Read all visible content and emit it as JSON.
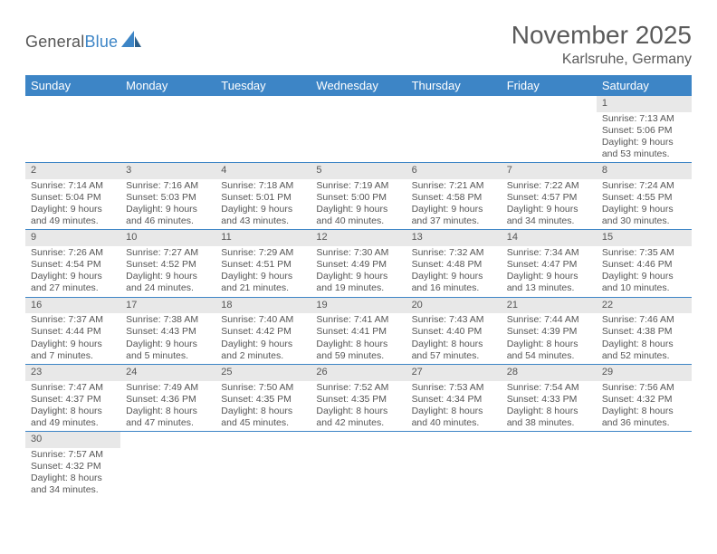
{
  "logo": {
    "text_general": "General",
    "text_blue": "Blue"
  },
  "title": "November 2025",
  "location": "Karlsruhe, Germany",
  "colors": {
    "header_bg": "#3d85c6",
    "header_text": "#ffffff",
    "daynum_bg": "#e8e8e8",
    "cell_border": "#3d85c6",
    "text": "#555555",
    "background": "#ffffff"
  },
  "day_headers": [
    "Sunday",
    "Monday",
    "Tuesday",
    "Wednesday",
    "Thursday",
    "Friday",
    "Saturday"
  ],
  "weeks": [
    [
      {
        "empty": true
      },
      {
        "empty": true
      },
      {
        "empty": true
      },
      {
        "empty": true
      },
      {
        "empty": true
      },
      {
        "empty": true
      },
      {
        "num": "1",
        "sunrise": "Sunrise: 7:13 AM",
        "sunset": "Sunset: 5:06 PM",
        "daylight1": "Daylight: 9 hours",
        "daylight2": "and 53 minutes."
      }
    ],
    [
      {
        "num": "2",
        "sunrise": "Sunrise: 7:14 AM",
        "sunset": "Sunset: 5:04 PM",
        "daylight1": "Daylight: 9 hours",
        "daylight2": "and 49 minutes."
      },
      {
        "num": "3",
        "sunrise": "Sunrise: 7:16 AM",
        "sunset": "Sunset: 5:03 PM",
        "daylight1": "Daylight: 9 hours",
        "daylight2": "and 46 minutes."
      },
      {
        "num": "4",
        "sunrise": "Sunrise: 7:18 AM",
        "sunset": "Sunset: 5:01 PM",
        "daylight1": "Daylight: 9 hours",
        "daylight2": "and 43 minutes."
      },
      {
        "num": "5",
        "sunrise": "Sunrise: 7:19 AM",
        "sunset": "Sunset: 5:00 PM",
        "daylight1": "Daylight: 9 hours",
        "daylight2": "and 40 minutes."
      },
      {
        "num": "6",
        "sunrise": "Sunrise: 7:21 AM",
        "sunset": "Sunset: 4:58 PM",
        "daylight1": "Daylight: 9 hours",
        "daylight2": "and 37 minutes."
      },
      {
        "num": "7",
        "sunrise": "Sunrise: 7:22 AM",
        "sunset": "Sunset: 4:57 PM",
        "daylight1": "Daylight: 9 hours",
        "daylight2": "and 34 minutes."
      },
      {
        "num": "8",
        "sunrise": "Sunrise: 7:24 AM",
        "sunset": "Sunset: 4:55 PM",
        "daylight1": "Daylight: 9 hours",
        "daylight2": "and 30 minutes."
      }
    ],
    [
      {
        "num": "9",
        "sunrise": "Sunrise: 7:26 AM",
        "sunset": "Sunset: 4:54 PM",
        "daylight1": "Daylight: 9 hours",
        "daylight2": "and 27 minutes."
      },
      {
        "num": "10",
        "sunrise": "Sunrise: 7:27 AM",
        "sunset": "Sunset: 4:52 PM",
        "daylight1": "Daylight: 9 hours",
        "daylight2": "and 24 minutes."
      },
      {
        "num": "11",
        "sunrise": "Sunrise: 7:29 AM",
        "sunset": "Sunset: 4:51 PM",
        "daylight1": "Daylight: 9 hours",
        "daylight2": "and 21 minutes."
      },
      {
        "num": "12",
        "sunrise": "Sunrise: 7:30 AM",
        "sunset": "Sunset: 4:49 PM",
        "daylight1": "Daylight: 9 hours",
        "daylight2": "and 19 minutes."
      },
      {
        "num": "13",
        "sunrise": "Sunrise: 7:32 AM",
        "sunset": "Sunset: 4:48 PM",
        "daylight1": "Daylight: 9 hours",
        "daylight2": "and 16 minutes."
      },
      {
        "num": "14",
        "sunrise": "Sunrise: 7:34 AM",
        "sunset": "Sunset: 4:47 PM",
        "daylight1": "Daylight: 9 hours",
        "daylight2": "and 13 minutes."
      },
      {
        "num": "15",
        "sunrise": "Sunrise: 7:35 AM",
        "sunset": "Sunset: 4:46 PM",
        "daylight1": "Daylight: 9 hours",
        "daylight2": "and 10 minutes."
      }
    ],
    [
      {
        "num": "16",
        "sunrise": "Sunrise: 7:37 AM",
        "sunset": "Sunset: 4:44 PM",
        "daylight1": "Daylight: 9 hours",
        "daylight2": "and 7 minutes."
      },
      {
        "num": "17",
        "sunrise": "Sunrise: 7:38 AM",
        "sunset": "Sunset: 4:43 PM",
        "daylight1": "Daylight: 9 hours",
        "daylight2": "and 5 minutes."
      },
      {
        "num": "18",
        "sunrise": "Sunrise: 7:40 AM",
        "sunset": "Sunset: 4:42 PM",
        "daylight1": "Daylight: 9 hours",
        "daylight2": "and 2 minutes."
      },
      {
        "num": "19",
        "sunrise": "Sunrise: 7:41 AM",
        "sunset": "Sunset: 4:41 PM",
        "daylight1": "Daylight: 8 hours",
        "daylight2": "and 59 minutes."
      },
      {
        "num": "20",
        "sunrise": "Sunrise: 7:43 AM",
        "sunset": "Sunset: 4:40 PM",
        "daylight1": "Daylight: 8 hours",
        "daylight2": "and 57 minutes."
      },
      {
        "num": "21",
        "sunrise": "Sunrise: 7:44 AM",
        "sunset": "Sunset: 4:39 PM",
        "daylight1": "Daylight: 8 hours",
        "daylight2": "and 54 minutes."
      },
      {
        "num": "22",
        "sunrise": "Sunrise: 7:46 AM",
        "sunset": "Sunset: 4:38 PM",
        "daylight1": "Daylight: 8 hours",
        "daylight2": "and 52 minutes."
      }
    ],
    [
      {
        "num": "23",
        "sunrise": "Sunrise: 7:47 AM",
        "sunset": "Sunset: 4:37 PM",
        "daylight1": "Daylight: 8 hours",
        "daylight2": "and 49 minutes."
      },
      {
        "num": "24",
        "sunrise": "Sunrise: 7:49 AM",
        "sunset": "Sunset: 4:36 PM",
        "daylight1": "Daylight: 8 hours",
        "daylight2": "and 47 minutes."
      },
      {
        "num": "25",
        "sunrise": "Sunrise: 7:50 AM",
        "sunset": "Sunset: 4:35 PM",
        "daylight1": "Daylight: 8 hours",
        "daylight2": "and 45 minutes."
      },
      {
        "num": "26",
        "sunrise": "Sunrise: 7:52 AM",
        "sunset": "Sunset: 4:35 PM",
        "daylight1": "Daylight: 8 hours",
        "daylight2": "and 42 minutes."
      },
      {
        "num": "27",
        "sunrise": "Sunrise: 7:53 AM",
        "sunset": "Sunset: 4:34 PM",
        "daylight1": "Daylight: 8 hours",
        "daylight2": "and 40 minutes."
      },
      {
        "num": "28",
        "sunrise": "Sunrise: 7:54 AM",
        "sunset": "Sunset: 4:33 PM",
        "daylight1": "Daylight: 8 hours",
        "daylight2": "and 38 minutes."
      },
      {
        "num": "29",
        "sunrise": "Sunrise: 7:56 AM",
        "sunset": "Sunset: 4:32 PM",
        "daylight1": "Daylight: 8 hours",
        "daylight2": "and 36 minutes."
      }
    ],
    [
      {
        "num": "30",
        "sunrise": "Sunrise: 7:57 AM",
        "sunset": "Sunset: 4:32 PM",
        "daylight1": "Daylight: 8 hours",
        "daylight2": "and 34 minutes."
      },
      {
        "empty": true
      },
      {
        "empty": true
      },
      {
        "empty": true
      },
      {
        "empty": true
      },
      {
        "empty": true
      },
      {
        "empty": true
      }
    ]
  ]
}
